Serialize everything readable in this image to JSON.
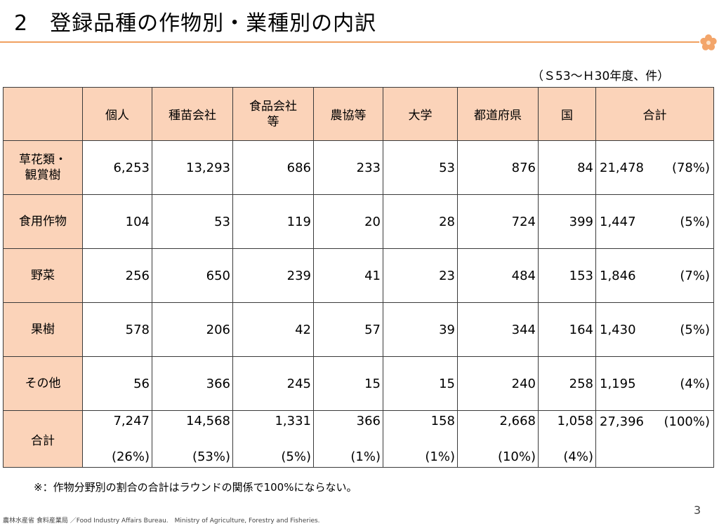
{
  "header": {
    "title": "2　登録品種の作物別・業種別の内訳",
    "unit": "（Ｓ53～Ｈ30年度、件）"
  },
  "table": {
    "columns": [
      "",
      "個人",
      "種苗会社",
      "食品会社\n等",
      "農協等",
      "大学",
      "都道府県",
      "国",
      "合計"
    ],
    "rows": [
      {
        "label": "草花類・\n観賞樹",
        "values": [
          "6,253",
          "13,293",
          "686",
          "233",
          "53",
          "876",
          "84"
        ],
        "total": "21,478",
        "pct": "(78%)"
      },
      {
        "label": "食用作物",
        "values": [
          "104",
          "53",
          "119",
          "20",
          "28",
          "724",
          "399"
        ],
        "total": "1,447",
        "pct": "(5%)"
      },
      {
        "label": "野菜",
        "values": [
          "256",
          "650",
          "239",
          "41",
          "23",
          "484",
          "153"
        ],
        "total": "1,846",
        "pct": "(7%)"
      },
      {
        "label": "果樹",
        "values": [
          "578",
          "206",
          "42",
          "57",
          "39",
          "344",
          "164"
        ],
        "total": "1,430",
        "pct": "(5%)"
      },
      {
        "label": "その他",
        "values": [
          "56",
          "366",
          "245",
          "15",
          "15",
          "240",
          "258"
        ],
        "total": "1,195",
        "pct": "(4%)"
      }
    ],
    "total_row": {
      "label": "合計",
      "values": [
        "7,247",
        "14,568",
        "1,331",
        "366",
        "158",
        "2,668",
        "1,058"
      ],
      "pcts": [
        "(26%)",
        "(53%)",
        "(5%)",
        "(1%)",
        "(1%)",
        "(10%)",
        "(4%)"
      ],
      "grand_total": "27,396",
      "grand_pct": "(100%)"
    }
  },
  "note": "※：作物分野別の割合の合計はラウンドの関係で100%にならない。",
  "footer": "農林水産省 食料産業局 ／Food Industry Affairs Bureau.　Ministry of Agriculture, Forestry and Fisheries.",
  "page_number": "3",
  "colors": {
    "accent": "#f0a060",
    "header_fill": "#fbd3b9"
  },
  "icons": [
    "plum-blossom-icon"
  ]
}
